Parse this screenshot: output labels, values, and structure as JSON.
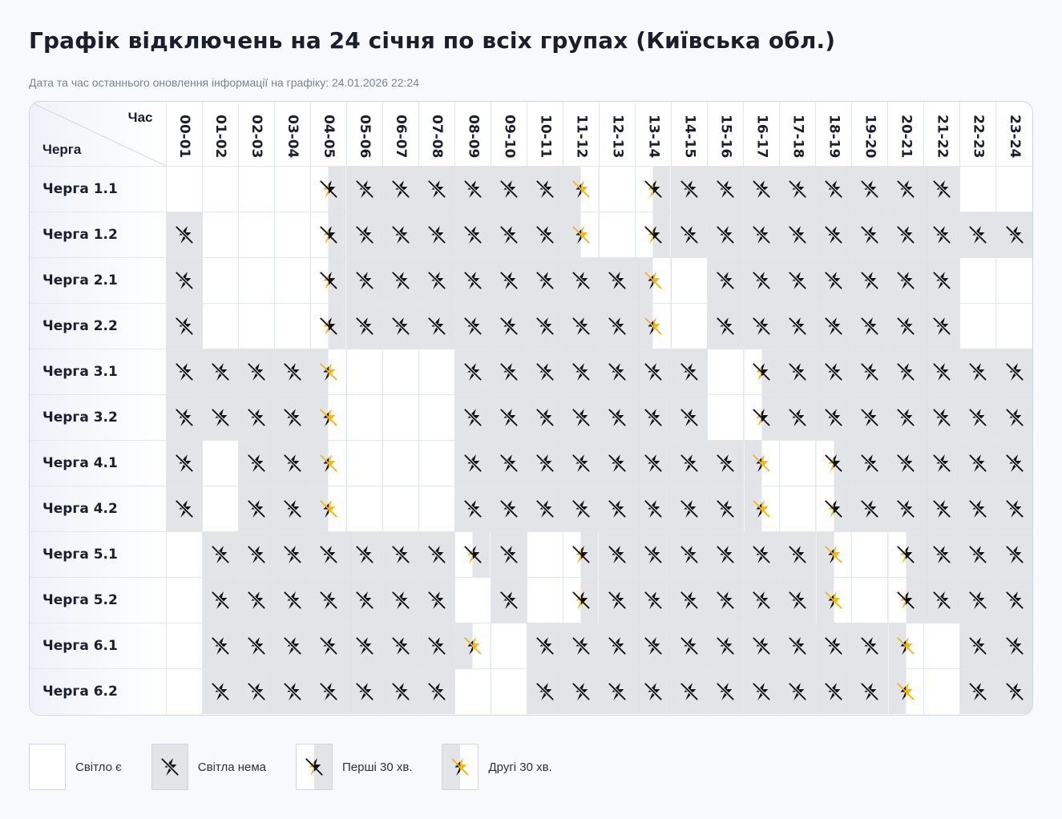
{
  "page": {
    "title": "Графік відключень на 24 січня по всіх групах (Київська обл.)",
    "updated": "Дата та час останнього оновлення інформації на графіку: 24.01.2026 22:24"
  },
  "table": {
    "corner_hour_label": "Час",
    "corner_queue_label": "Черга",
    "hours": [
      "00-01",
      "01-02",
      "02-03",
      "03-04",
      "04-05",
      "05-06",
      "06-07",
      "07-08",
      "08-09",
      "09-10",
      "10-11",
      "11-12",
      "12-13",
      "13-14",
      "14-15",
      "15-16",
      "16-17",
      "17-18",
      "18-19",
      "19-20",
      "20-21",
      "21-22",
      "22-23",
      "23-24"
    ],
    "rows": [
      {
        "name": "Черга 1.1",
        "cells": [
          "on",
          "on",
          "on",
          "on",
          "f",
          "x",
          "x",
          "x",
          "x",
          "x",
          "x",
          "s",
          "on",
          "f",
          "x",
          "x",
          "x",
          "x",
          "x",
          "x",
          "x",
          "x",
          "on",
          "on"
        ]
      },
      {
        "name": "Черга 1.2",
        "cells": [
          "x",
          "on",
          "on",
          "on",
          "f",
          "x",
          "x",
          "x",
          "x",
          "x",
          "x",
          "s",
          "on",
          "f",
          "x",
          "x",
          "x",
          "x",
          "x",
          "x",
          "x",
          "x",
          "x",
          "x"
        ]
      },
      {
        "name": "Черга 2.1",
        "cells": [
          "x",
          "on",
          "on",
          "on",
          "f",
          "x",
          "x",
          "x",
          "x",
          "x",
          "x",
          "x",
          "x",
          "s",
          "on",
          "x",
          "x",
          "x",
          "x",
          "x",
          "x",
          "x",
          "on",
          "on"
        ]
      },
      {
        "name": "Черга 2.2",
        "cells": [
          "x",
          "on",
          "on",
          "on",
          "f",
          "x",
          "x",
          "x",
          "x",
          "x",
          "x",
          "x",
          "x",
          "s",
          "on",
          "x",
          "x",
          "x",
          "x",
          "x",
          "x",
          "x",
          "on",
          "on"
        ]
      },
      {
        "name": "Черга 3.1",
        "cells": [
          "x",
          "x",
          "x",
          "x",
          "s",
          "on",
          "on",
          "on",
          "x",
          "x",
          "x",
          "x",
          "x",
          "x",
          "x",
          "on",
          "f",
          "x",
          "x",
          "x",
          "x",
          "x",
          "x",
          "x"
        ]
      },
      {
        "name": "Черга 3.2",
        "cells": [
          "x",
          "x",
          "x",
          "x",
          "s",
          "on",
          "on",
          "on",
          "x",
          "x",
          "x",
          "x",
          "x",
          "x",
          "x",
          "on",
          "f",
          "x",
          "x",
          "x",
          "x",
          "x",
          "x",
          "x"
        ]
      },
      {
        "name": "Черга 4.1",
        "cells": [
          "x",
          "on",
          "x",
          "x",
          "s",
          "on",
          "on",
          "on",
          "x",
          "x",
          "x",
          "x",
          "x",
          "x",
          "x",
          "x",
          "s",
          "on",
          "f",
          "x",
          "x",
          "x",
          "x",
          "x"
        ]
      },
      {
        "name": "Черга 4.2",
        "cells": [
          "x",
          "on",
          "x",
          "x",
          "s",
          "on",
          "on",
          "on",
          "x",
          "x",
          "x",
          "x",
          "x",
          "x",
          "x",
          "x",
          "s",
          "on",
          "f",
          "x",
          "x",
          "x",
          "x",
          "x"
        ]
      },
      {
        "name": "Черга 5.1",
        "cells": [
          "on",
          "x",
          "x",
          "x",
          "x",
          "x",
          "x",
          "x",
          "f",
          "x",
          "on",
          "f",
          "x",
          "x",
          "x",
          "x",
          "x",
          "x",
          "s",
          "on",
          "f",
          "x",
          "x",
          "x"
        ]
      },
      {
        "name": "Черга 5.2",
        "cells": [
          "on",
          "x",
          "x",
          "x",
          "x",
          "x",
          "x",
          "x",
          "on",
          "x",
          "on",
          "f",
          "x",
          "x",
          "x",
          "x",
          "x",
          "x",
          "s",
          "on",
          "f",
          "x",
          "x",
          "x"
        ]
      },
      {
        "name": "Черга 6.1",
        "cells": [
          "on",
          "x",
          "x",
          "x",
          "x",
          "x",
          "x",
          "x",
          "s",
          "on",
          "x",
          "x",
          "x",
          "x",
          "x",
          "x",
          "x",
          "x",
          "x",
          "x",
          "s",
          "on",
          "x",
          "x"
        ]
      },
      {
        "name": "Черга 6.2",
        "cells": [
          "on",
          "x",
          "x",
          "x",
          "x",
          "x",
          "x",
          "x",
          "on",
          "on",
          "x",
          "x",
          "x",
          "x",
          "x",
          "x",
          "x",
          "x",
          "x",
          "x",
          "s",
          "on",
          "x",
          "x"
        ]
      }
    ]
  },
  "legend": [
    {
      "state": "on",
      "label": "Світло є"
    },
    {
      "state": "x",
      "label": "Світла нема"
    },
    {
      "state": "f",
      "label": "Перші 30 хв."
    },
    {
      "state": "s",
      "label": "Другі 30 хв."
    }
  ],
  "colors": {
    "outage_gray": "#e2e4e8",
    "accent_yellow": "#f2b51d",
    "icon_black": "#111111"
  },
  "icons": {
    "outage": "lightning-off-icon",
    "partial": "lightning-half-icon"
  }
}
